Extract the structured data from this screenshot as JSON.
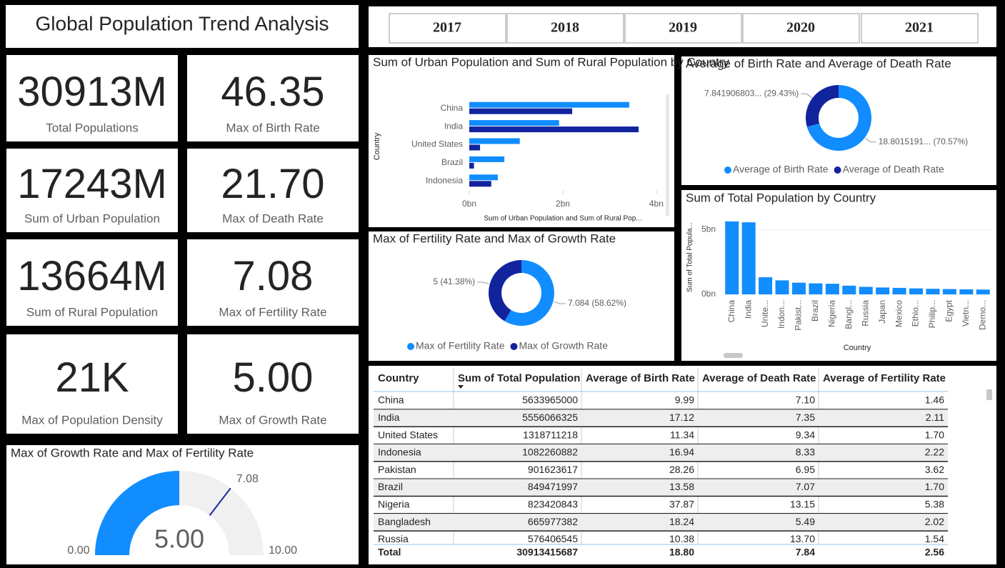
{
  "title": "Global Population Trend Analysis",
  "slicer": [
    "2017",
    "2018",
    "2019",
    "2020",
    "2021"
  ],
  "cards": [
    {
      "value": "30913M",
      "label": "Total Populations"
    },
    {
      "value": "46.35",
      "label": "Max of Birth Rate"
    },
    {
      "value": "17243M",
      "label": "Sum of Urban Population"
    },
    {
      "value": "21.70",
      "label": "Max of Death Rate"
    },
    {
      "value": "13664M",
      "label": "Sum of Rural Population"
    },
    {
      "value": "7.08",
      "label": "Max of Fertility Rate"
    },
    {
      "value": "21K",
      "label": "Max of Population Density"
    },
    {
      "value": "5.00",
      "label": "Max of Growth Rate"
    }
  ],
  "chart_data": [
    {
      "type": "hbar",
      "title": "Sum of Urban Population and Sum of Rural Population by Country",
      "x_label": "Sum of Urban Population and Sum of Rural Pop...",
      "y_label": "Country",
      "categories": [
        "China",
        "India",
        "United States",
        "Brazil",
        "Indonesia"
      ],
      "series": [
        {
          "color": "#118DFF",
          "values": [
            3.42,
            1.92,
            1.08,
            0.75,
            0.61
          ]
        },
        {
          "color": "#12239E",
          "values": [
            2.2,
            3.62,
            0.23,
            0.1,
            0.47
          ]
        }
      ],
      "xlim": [
        0,
        4.2
      ],
      "xticks": [
        {
          "value": 0,
          "label": "0bn"
        },
        {
          "value": 2,
          "label": "2bn"
        },
        {
          "value": 4,
          "label": "4bn"
        }
      ]
    },
    {
      "type": "donut",
      "title": "Average of Birth Rate and Average of Death Rate",
      "categories": [
        "Average of Birth Rate",
        "Average of Death Rate"
      ],
      "values": [
        18.8015191,
        7.841906803
      ],
      "value_labels": [
        "18.8015191... (70.57%)",
        "7.841906803... (29.43%)"
      ],
      "colors": [
        "#118DFF",
        "#12239E"
      ]
    },
    {
      "type": "column",
      "title": "Sum of Total Population by Country",
      "x_label": "Country",
      "y_label": "Sum of Total Popula...",
      "categories": [
        "China",
        "India",
        "Unite...",
        "Indon...",
        "Pakist...",
        "Brazil",
        "Nigeria",
        "Bangl...",
        "Russia",
        "Japan",
        "Mexico",
        "Ethio...",
        "Philip...",
        "Egypt",
        "Vietn...",
        "Demo..."
      ],
      "values": [
        5.63,
        5.56,
        1.32,
        1.08,
        0.9,
        0.85,
        0.82,
        0.67,
        0.58,
        0.53,
        0.5,
        0.46,
        0.43,
        0.41,
        0.39,
        0.37
      ],
      "color": "#118DFF",
      "ylim": [
        0,
        5.9
      ],
      "yticks": [
        {
          "value": 0,
          "label": "0bn"
        },
        {
          "value": 5,
          "label": "5bn"
        }
      ],
      "grid": true
    },
    {
      "type": "donut",
      "title": "Max of Fertility Rate and Max of Growth Rate",
      "categories": [
        "Max of Fertility Rate",
        "Max of Growth Rate"
      ],
      "values": [
        7.084,
        5
      ],
      "value_labels": [
        "7.084 (58.62%)",
        "5 (41.38%)"
      ],
      "colors": [
        "#118DFF",
        "#12239E"
      ]
    },
    {
      "type": "gauge",
      "title": "Max of Growth Rate and Max of Fertility Rate",
      "values": [
        5
      ],
      "value_labels": [
        "5.00"
      ],
      "min": {
        "value": 0,
        "label": "0.00"
      },
      "max": {
        "value": 10,
        "label": "10.00"
      },
      "target": {
        "value": 7.08,
        "label": "7.08"
      },
      "colors": [
        "#118DFF",
        "#12239E"
      ]
    }
  ],
  "table": {
    "columns": [
      "Country",
      "Sum of Total Population",
      "Average of Birth Rate",
      "Average of Death Rate",
      "Average of Fertility Rate"
    ],
    "rows": [
      [
        "China",
        "5633965000",
        "9.99",
        "7.10",
        "1.46"
      ],
      [
        "India",
        "5556066325",
        "17.12",
        "7.35",
        "2.11"
      ],
      [
        "United States",
        "1318711218",
        "11.34",
        "9.34",
        "1.70"
      ],
      [
        "Indonesia",
        "1082260882",
        "16.94",
        "8.33",
        "2.22"
      ],
      [
        "Pakistan",
        "901623617",
        "28.26",
        "6.95",
        "3.62"
      ],
      [
        "Brazil",
        "849471997",
        "13.58",
        "7.07",
        "1.70"
      ],
      [
        "Nigeria",
        "823420843",
        "37.87",
        "13.15",
        "5.38"
      ],
      [
        "Bangladesh",
        "665977382",
        "18.24",
        "5.49",
        "2.02"
      ],
      [
        "Russia",
        "576406545",
        "10.38",
        "13.70",
        "1.54"
      ]
    ],
    "total": [
      "Total",
      "30913415687",
      "18.80",
      "7.84",
      "2.56"
    ]
  }
}
